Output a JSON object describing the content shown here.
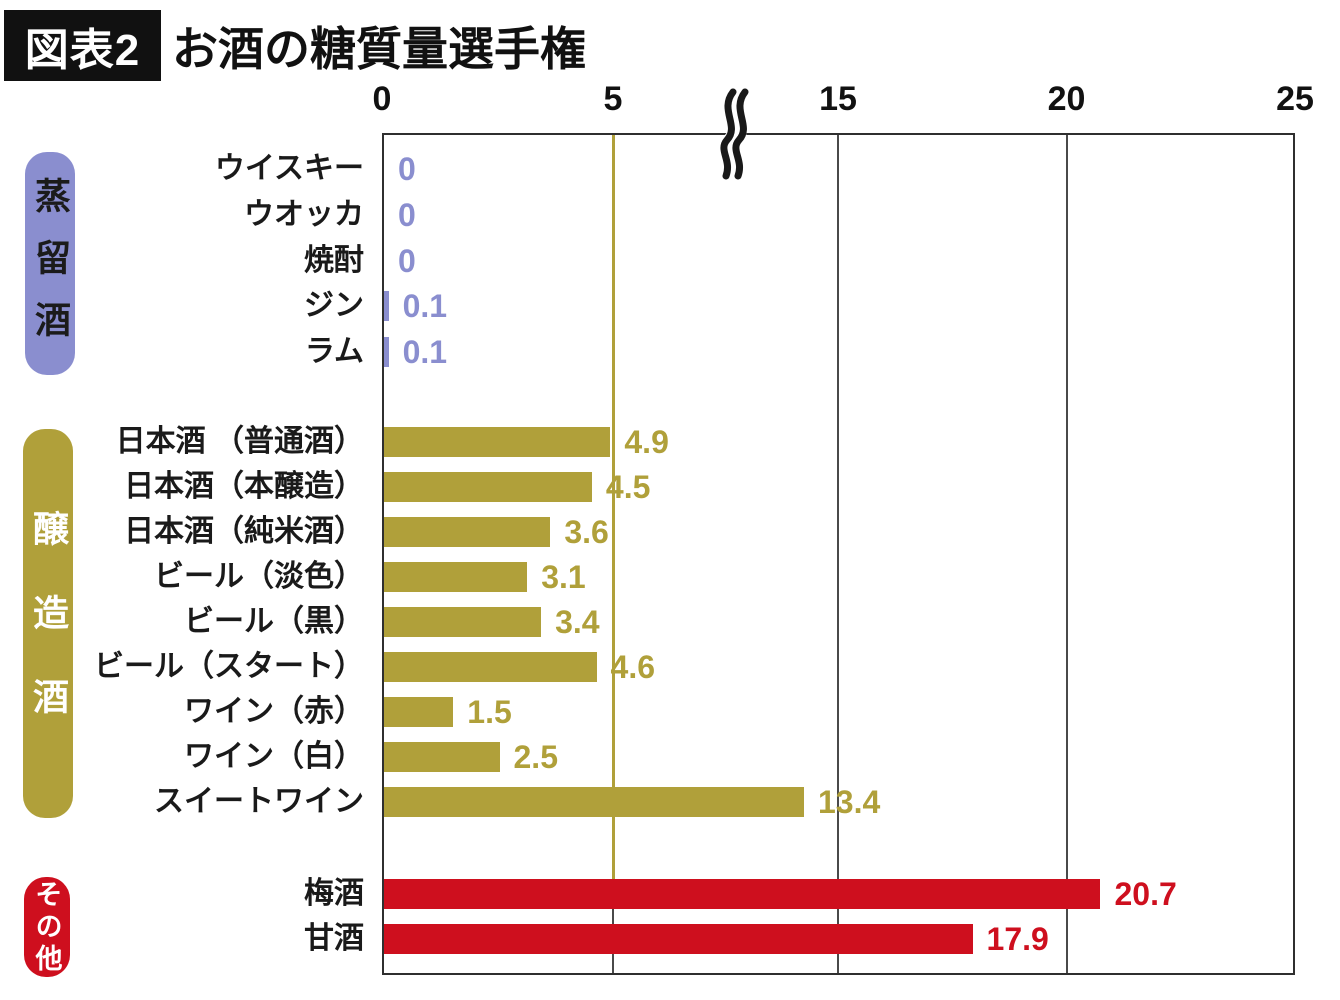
{
  "header": {
    "tag": "図表2",
    "title": "お酒の糖質量選手権"
  },
  "chart_data": {
    "type": "bar",
    "orientation": "horizontal",
    "title": "お酒の糖質量選手権",
    "xlim": [
      0,
      25
    ],
    "x_ticks": [
      "0",
      "5",
      "15",
      "20",
      "25"
    ],
    "x_tick_values": [
      0,
      5,
      15,
      20,
      25
    ],
    "axis_break": {
      "between": [
        5,
        15
      ]
    },
    "grid": "on",
    "border_color": "#2f2f2f",
    "grid_color": "#4a4a4a",
    "accent_gridline": {
      "value": 5,
      "color": "#b0a03a"
    },
    "groups": [
      {
        "name": "蒸留酒",
        "bar_color": "#8a8ecf",
        "badge_color": "#8a8ecf",
        "badge_text_color": "#1b1b1b",
        "items": [
          {
            "label": "ウイスキー",
            "value": 0,
            "display": "0"
          },
          {
            "label": "ウオッカ",
            "value": 0,
            "display": "0"
          },
          {
            "label": "焼酎",
            "value": 0,
            "display": "0"
          },
          {
            "label": "ジン",
            "value": 0.1,
            "display": "0.1"
          },
          {
            "label": "ラム",
            "value": 0.1,
            "display": "0.1"
          }
        ]
      },
      {
        "name": "醸造酒",
        "bar_color": "#b0a03a",
        "badge_color": "#b0a03a",
        "badge_text_color": "#ffffff",
        "items": [
          {
            "label": "日本酒 （普通酒）",
            "value": 4.9,
            "display": "4.9"
          },
          {
            "label": "日本酒（本醸造）",
            "value": 4.5,
            "display": "4.5"
          },
          {
            "label": "日本酒（純米酒）",
            "value": 3.6,
            "display": "3.6"
          },
          {
            "label": "ビール（淡色）",
            "value": 3.1,
            "display": "3.1"
          },
          {
            "label": "ビール（黒）",
            "value": 3.4,
            "display": "3.4"
          },
          {
            "label": "ビール（スタート）",
            "value": 4.6,
            "display": "4.6"
          },
          {
            "label": "ワイン（赤）",
            "value": 1.5,
            "display": "1.5"
          },
          {
            "label": "ワイン（白）",
            "value": 2.5,
            "display": "2.5"
          },
          {
            "label": "スイートワイン",
            "value": 13.4,
            "display": "13.4"
          }
        ]
      },
      {
        "name": "その他",
        "bar_color": "#ce0f1e",
        "badge_color": "#ce0f1e",
        "badge_text_color": "#ffffff",
        "items": [
          {
            "label": "梅酒",
            "value": 20.7,
            "display": "20.7"
          },
          {
            "label": "甘酒",
            "value": 17.9,
            "display": "17.9"
          }
        ]
      }
    ]
  }
}
